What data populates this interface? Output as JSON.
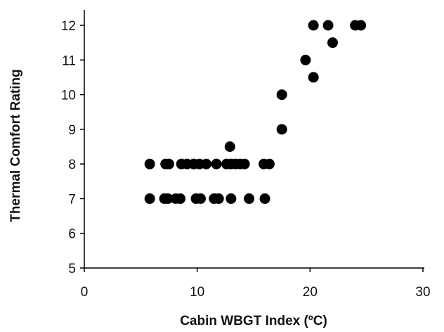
{
  "chart_data": {
    "type": "scatter",
    "title": "",
    "xlabel": "Cabin WBGT Index (ºC)",
    "ylabel": "Thermal Comfort Rating",
    "xlim": [
      0,
      30
    ],
    "ylim": [
      5,
      12
    ],
    "x_ticks": [
      0,
      10,
      20,
      30
    ],
    "y_ticks": [
      5,
      6,
      7,
      8,
      9,
      10,
      11,
      12
    ],
    "grid": false,
    "legend": "none",
    "marker_color": "#000000",
    "series": [
      {
        "points": [
          {
            "x": 5.8,
            "y": 7
          },
          {
            "x": 7.1,
            "y": 7
          },
          {
            "x": 7.4,
            "y": 7
          },
          {
            "x": 8.1,
            "y": 7
          },
          {
            "x": 8.5,
            "y": 7
          },
          {
            "x": 9.9,
            "y": 7
          },
          {
            "x": 10.3,
            "y": 7
          },
          {
            "x": 11.5,
            "y": 7
          },
          {
            "x": 11.9,
            "y": 7
          },
          {
            "x": 13.0,
            "y": 7
          },
          {
            "x": 14.6,
            "y": 7
          },
          {
            "x": 16.0,
            "y": 7
          },
          {
            "x": 5.8,
            "y": 8
          },
          {
            "x": 7.2,
            "y": 8
          },
          {
            "x": 7.5,
            "y": 8
          },
          {
            "x": 8.6,
            "y": 8
          },
          {
            "x": 9.1,
            "y": 8
          },
          {
            "x": 9.7,
            "y": 8
          },
          {
            "x": 10.2,
            "y": 8
          },
          {
            "x": 10.8,
            "y": 8
          },
          {
            "x": 11.7,
            "y": 8
          },
          {
            "x": 12.6,
            "y": 8
          },
          {
            "x": 13.0,
            "y": 8
          },
          {
            "x": 13.4,
            "y": 8
          },
          {
            "x": 13.8,
            "y": 8
          },
          {
            "x": 14.2,
            "y": 8
          },
          {
            "x": 15.9,
            "y": 8
          },
          {
            "x": 16.4,
            "y": 8
          },
          {
            "x": 12.9,
            "y": 8.5
          },
          {
            "x": 17.5,
            "y": 9
          },
          {
            "x": 17.5,
            "y": 10
          },
          {
            "x": 19.6,
            "y": 11
          },
          {
            "x": 20.3,
            "y": 10.5
          },
          {
            "x": 22.0,
            "y": 11.5
          },
          {
            "x": 20.3,
            "y": 12
          },
          {
            "x": 21.6,
            "y": 12
          },
          {
            "x": 24.0,
            "y": 12
          },
          {
            "x": 24.5,
            "y": 12
          }
        ]
      }
    ]
  }
}
